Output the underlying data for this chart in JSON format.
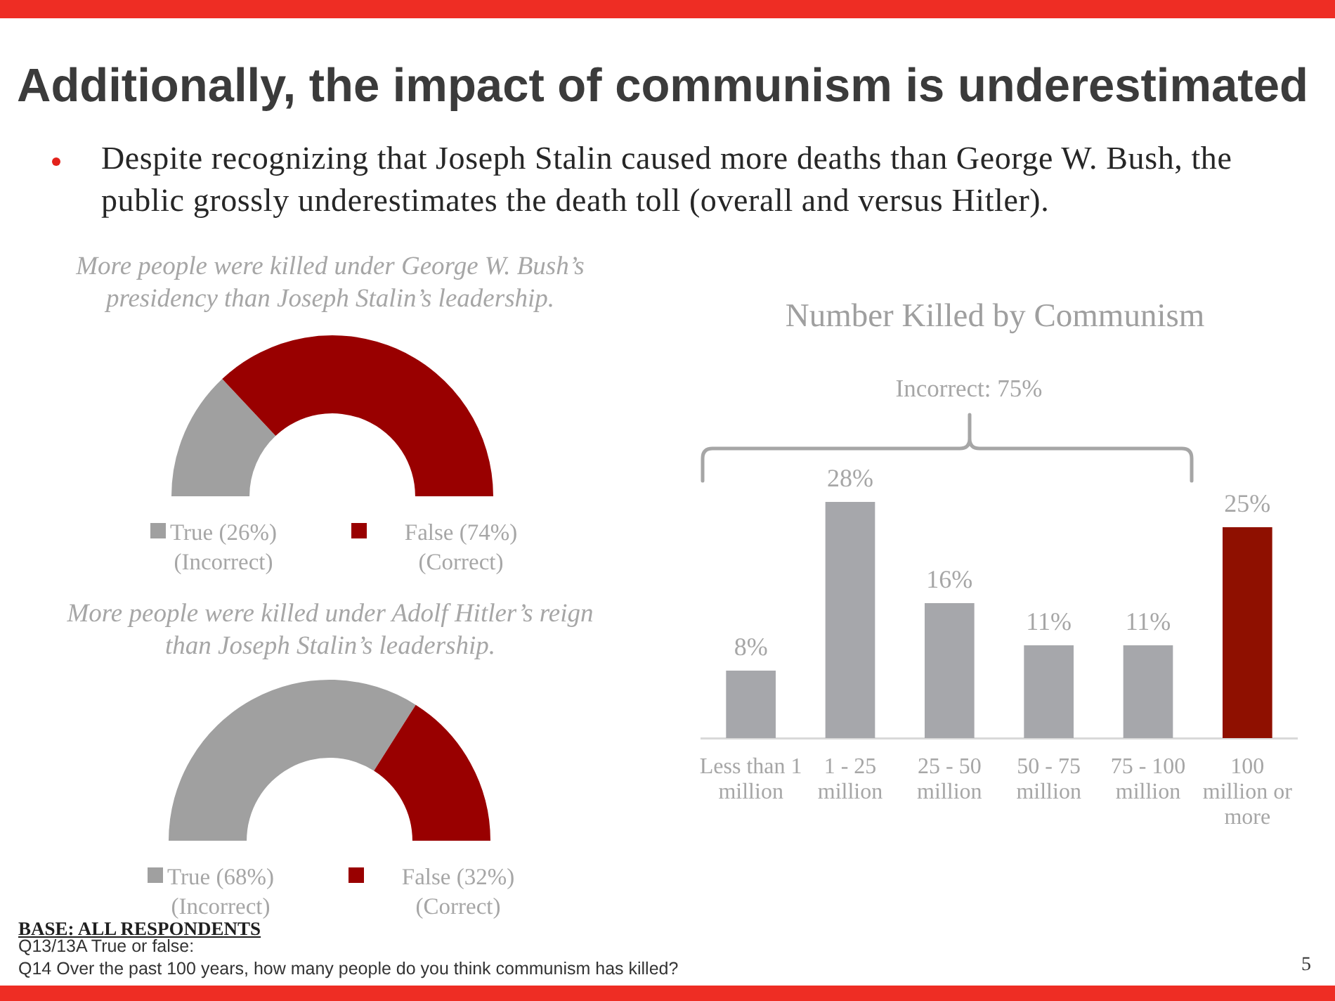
{
  "chart_data": [
    {
      "type": "other",
      "title": "Additionally, the impact of communism is underestimated",
      "subtitle": "Despite recognizing that Joseph Stalin caused more deaths than George W. Bush, the public grossly underestimates the death toll (overall and versus Hitler).",
      "annotations": [
        "BASE: ALL RESPONDENTS",
        "Q13/13A True or false:",
        "Q14 Over the past 100 years, how many people do you think communism has killed?",
        "5"
      ]
    },
    {
      "type": "donut",
      "title": "More people were killed under George W. Bush’s presidency than Joseph Stalin’s leadership.",
      "categories": [
        "True (26%) (Incorrect)",
        "False (74%) (Correct)"
      ],
      "values": [
        26,
        74
      ],
      "colors": [
        "#a0a0a0",
        "#990000"
      ],
      "legend": "bottom"
    },
    {
      "type": "donut",
      "title": "More people were killed under Adolf Hitler’s reign than Joseph Stalin’s leadership.",
      "categories": [
        "True (68%) (Incorrect)",
        "False (32%) (Correct)"
      ],
      "values": [
        68,
        32
      ],
      "colors": [
        "#a0a0a0",
        "#990000"
      ],
      "legend": "bottom"
    },
    {
      "type": "bar",
      "title": "Number Killed by Communism",
      "categories": [
        "Less than 1 million",
        "1 - 25 million",
        "25 - 50 million",
        "50 - 75 million",
        "75 - 100 million",
        "100 million or more"
      ],
      "values": [
        8,
        28,
        16,
        11,
        11,
        25
      ],
      "colors": [
        "#a6a7ab",
        "#a6a7ab",
        "#a6a7ab",
        "#a6a7ab",
        "#a6a7ab",
        "#8f1000"
      ],
      "value_labels": [
        "8%",
        "28%",
        "16%",
        "11%",
        "11%",
        "25%"
      ],
      "annotations": [
        "Incorrect: 75%"
      ]
    }
  ]
}
